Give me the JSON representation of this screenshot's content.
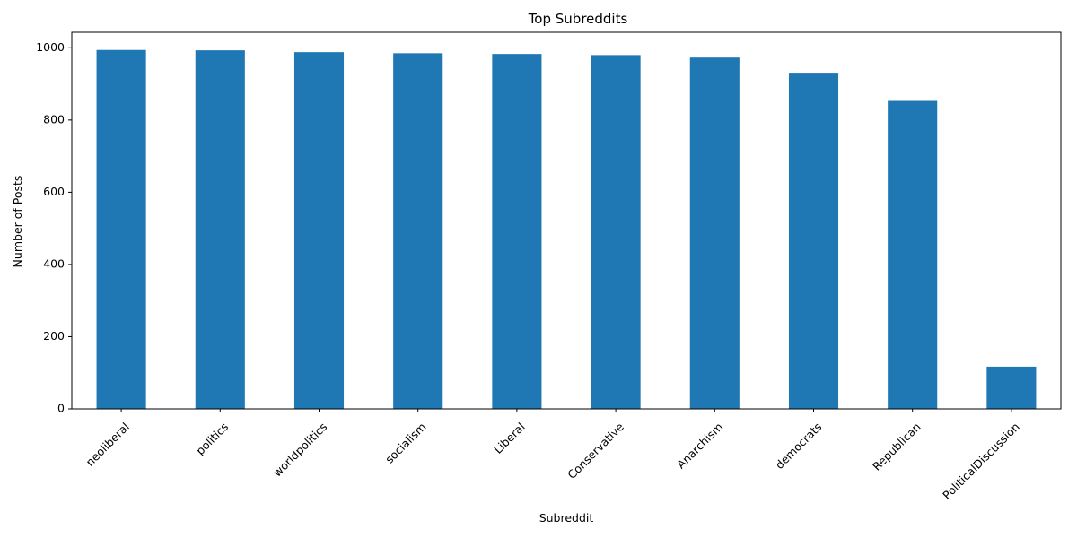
{
  "chart_data": {
    "type": "bar",
    "title": "Top Subreddits",
    "xlabel": "Subreddit",
    "ylabel": "Number of Posts",
    "categories": [
      "neoliberal",
      "politics",
      "worldpolitics",
      "socialism",
      "Liberal",
      "Conservative",
      "Anarchism",
      "democrats",
      "Republican",
      "PoliticalDiscussion"
    ],
    "values": [
      994,
      993,
      988,
      985,
      983,
      980,
      973,
      931,
      853,
      117
    ],
    "ylim": [
      0,
      1043
    ],
    "yticks": [
      0,
      200,
      400,
      600,
      800,
      1000
    ],
    "grid": false,
    "legend": false,
    "bar_color": "#1f77b4"
  }
}
